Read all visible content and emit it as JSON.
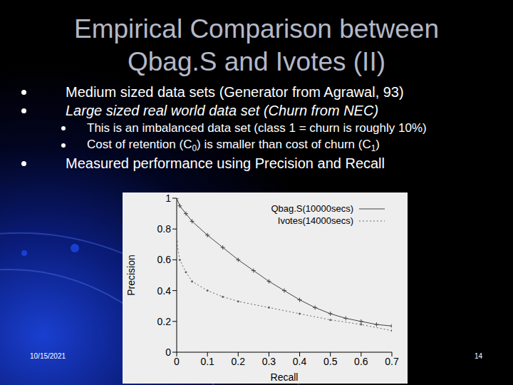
{
  "slide": {
    "title": "Empirical Comparison between Qbag.S and Ivotes (II)",
    "bullets": [
      {
        "text": "Medium sized data sets (Generator from Agrawal, 93)",
        "italic": false
      },
      {
        "text": "Large sized real world data set (Churn from NEC)",
        "italic": true,
        "sub": [
          "This is an imbalanced data set (class 1 = churn is roughly 10%)",
          "Cost of retention (C0) is smaller than cost of churn (C1)"
        ]
      },
      {
        "text": "Measured performance using Precision and Recall",
        "italic": false
      }
    ],
    "date": "10/15/2021",
    "page": "14"
  },
  "chart_data": {
    "type": "line",
    "x_label": "Recall",
    "y_label": "Precision",
    "xlim": [
      0,
      0.7
    ],
    "xticks": [
      0,
      0.1,
      0.2,
      0.3,
      0.4,
      0.5,
      0.6,
      0.7
    ],
    "ylim": [
      0,
      1
    ],
    "yticks": [
      0,
      0.2,
      0.4,
      0.6,
      0.8,
      1
    ],
    "grid": false,
    "legend": "upper right",
    "series": [
      {
        "name": "Qbag.S(10000secs)",
        "color": "#444444",
        "marker": "plus",
        "line_style": "solid",
        "x": [
          0,
          0.01,
          0.03,
          0.05,
          0.1,
          0.15,
          0.2,
          0.25,
          0.3,
          0.35,
          0.4,
          0.45,
          0.5,
          0.55,
          0.6,
          0.65,
          0.7
        ],
        "values": [
          1,
          0.95,
          0.9,
          0.85,
          0.76,
          0.68,
          0.6,
          0.53,
          0.46,
          0.4,
          0.34,
          0.29,
          0.25,
          0.22,
          0.2,
          0.18,
          0.17
        ]
      },
      {
        "name": "Ivotes(14000secs)",
        "color": "#666666",
        "marker": "dot",
        "line_style": "dotted",
        "x": [
          0,
          0.01,
          0.03,
          0.05,
          0.1,
          0.15,
          0.2,
          0.3,
          0.4,
          0.5,
          0.6,
          0.7
        ],
        "values": [
          0.72,
          0.6,
          0.52,
          0.46,
          0.4,
          0.36,
          0.33,
          0.29,
          0.25,
          0.21,
          0.18,
          0.14
        ]
      }
    ]
  }
}
